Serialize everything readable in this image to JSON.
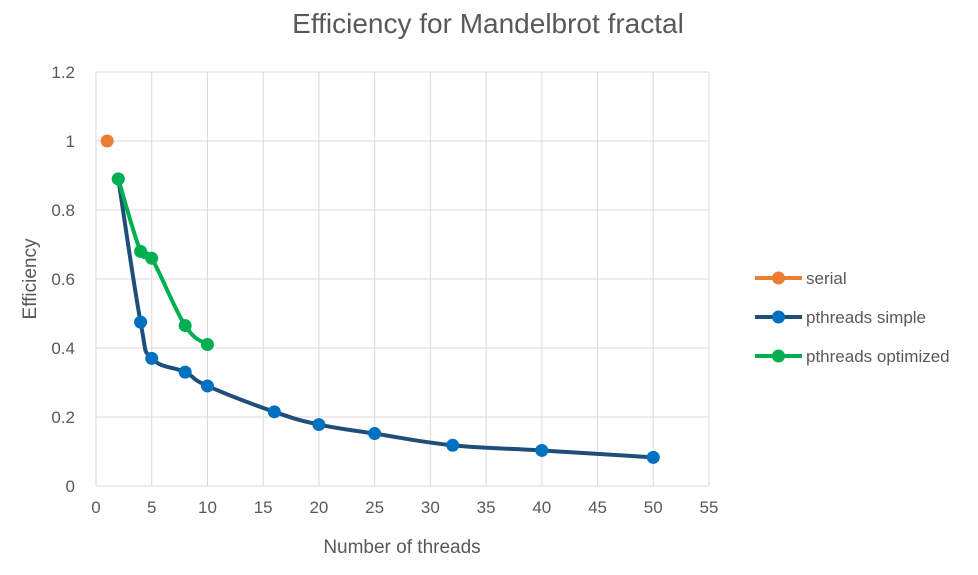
{
  "chart_data": {
    "type": "scatter",
    "title": "Efficiency for Mandelbrot fractal",
    "xlabel": "Number of threads",
    "ylabel": "Efficiency",
    "xlim": [
      0,
      55
    ],
    "ylim": [
      0,
      1.2
    ],
    "xticks": [
      "0",
      "5",
      "10",
      "15",
      "20",
      "25",
      "30",
      "35",
      "40",
      "45",
      "50",
      "55"
    ],
    "yticks": [
      "0",
      "0.2",
      "0.4",
      "0.6",
      "0.8",
      "1",
      "1.2"
    ],
    "grid": true,
    "legend_position": "right",
    "series": [
      {
        "name": "serial",
        "color": "#ED7D31",
        "marker_color": "#ED7D31",
        "points": [
          [
            1,
            1.0
          ]
        ]
      },
      {
        "name": "pthreads simple",
        "color": "#1F4E79",
        "marker_color": "#0070C0",
        "points": [
          [
            2,
            0.89
          ],
          [
            4,
            0.475
          ],
          [
            5,
            0.37
          ],
          [
            8,
            0.33
          ],
          [
            10,
            0.29
          ],
          [
            16,
            0.215
          ],
          [
            20,
            0.178
          ],
          [
            25,
            0.152
          ],
          [
            32,
            0.118
          ],
          [
            40,
            0.103
          ],
          [
            50,
            0.083
          ]
        ]
      },
      {
        "name": "pthreads optimized",
        "color": "#00B050",
        "marker_color": "#00B050",
        "points": [
          [
            2,
            0.89
          ],
          [
            4,
            0.68
          ],
          [
            5,
            0.66
          ],
          [
            8,
            0.465
          ],
          [
            10,
            0.41
          ]
        ]
      }
    ]
  }
}
